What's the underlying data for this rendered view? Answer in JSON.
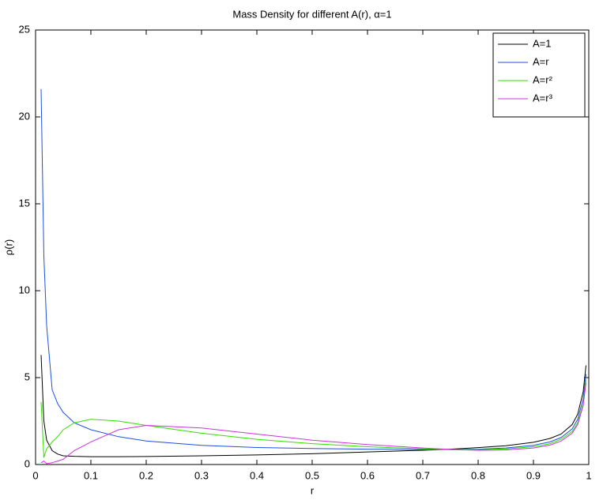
{
  "chart_data": {
    "type": "line",
    "title": "Mass Density for different A(r), α=1",
    "x_label": "r",
    "y_label": "ρ(r)",
    "x": [
      0.01,
      0.015,
      0.02,
      0.03,
      0.04,
      0.05,
      0.07,
      0.1,
      0.15,
      0.2,
      0.3,
      0.4,
      0.5,
      0.6,
      0.7,
      0.75,
      0.8,
      0.85,
      0.9,
      0.93,
      0.95,
      0.97,
      0.98,
      0.99,
      0.995
    ],
    "series": [
      {
        "name": "A=1",
        "color": "#000000",
        "values": [
          6.3,
          2.5,
          1.4,
          0.8,
          0.6,
          0.5,
          0.47,
          0.45,
          0.45,
          0.46,
          0.5,
          0.55,
          0.62,
          0.72,
          0.82,
          0.88,
          0.97,
          1.08,
          1.28,
          1.5,
          1.75,
          2.3,
          2.9,
          4.2,
          5.7
        ]
      },
      {
        "name": "A=r",
        "color": "#1f4fe0",
        "values": [
          21.6,
          12,
          8,
          4.3,
          3.5,
          3.0,
          2.4,
          2.0,
          1.6,
          1.35,
          1.1,
          0.98,
          0.92,
          0.88,
          0.86,
          0.86,
          0.88,
          0.95,
          1.1,
          1.3,
          1.55,
          2.05,
          2.6,
          3.8,
          5.2
        ]
      },
      {
        "name": "A=r²",
        "color": "#33dd00",
        "values": [
          3.6,
          0.4,
          0.9,
          1.3,
          1.6,
          2.0,
          2.4,
          2.6,
          2.5,
          2.25,
          1.8,
          1.45,
          1.2,
          1.02,
          0.9,
          0.86,
          0.85,
          0.9,
          1.02,
          1.2,
          1.45,
          1.9,
          2.4,
          3.5,
          4.9
        ]
      },
      {
        "name": "A=r³",
        "color": "#cc33dd",
        "values": [
          0.1,
          0.2,
          0.05,
          0.1,
          0.2,
          0.3,
          0.8,
          1.3,
          2.0,
          2.25,
          2.1,
          1.75,
          1.4,
          1.15,
          0.95,
          0.87,
          0.82,
          0.84,
          0.95,
          1.12,
          1.35,
          1.8,
          2.3,
          3.4,
          4.7
        ]
      }
    ],
    "xlim": [
      0,
      1
    ],
    "xticks": [
      0,
      0.1,
      0.2,
      0.3,
      0.4,
      0.5,
      0.6,
      0.7,
      0.8,
      0.9,
      1
    ],
    "ylim": [
      0,
      25
    ],
    "yticks": [
      0,
      5,
      10,
      15,
      20,
      25
    ],
    "grid": false,
    "legend": "upper right"
  }
}
